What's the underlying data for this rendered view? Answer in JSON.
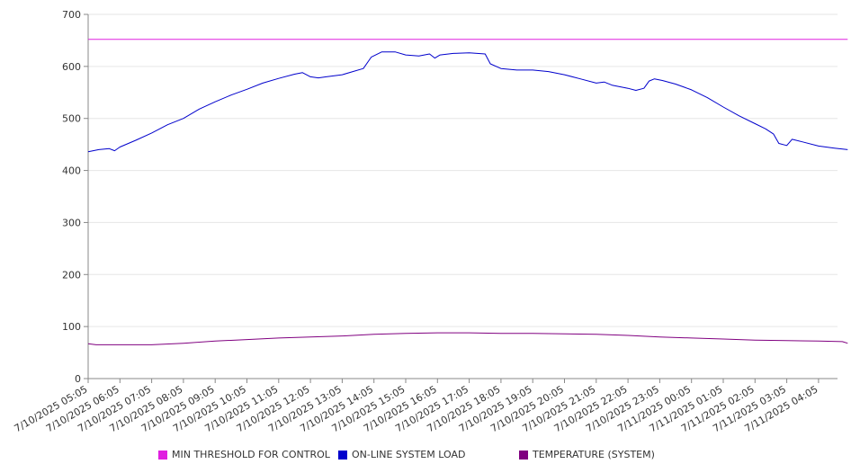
{
  "chart_data": {
    "type": "line",
    "title": "",
    "xlabel": "",
    "ylabel": "",
    "ylim": [
      0,
      700
    ],
    "y_ticks": [
      0,
      100,
      200,
      300,
      400,
      500,
      600,
      700
    ],
    "x_ticks": [
      "7/10/2025 05:05",
      "7/10/2025 06:05",
      "7/10/2025 07:05",
      "7/10/2025 08:05",
      "7/10/2025 09:05",
      "7/10/2025 10:05",
      "7/10/2025 11:05",
      "7/10/2025 12:05",
      "7/10/2025 13:05",
      "7/10/2025 14:05",
      "7/10/2025 15:05",
      "7/10/2025 16:05",
      "7/10/2025 17:05",
      "7/10/2025 18:05",
      "7/10/2025 19:05",
      "7/10/2025 20:05",
      "7/10/2025 21:05",
      "7/10/2025 22:05",
      "7/10/2025 23:05",
      "7/11/2025 00:05",
      "7/11/2025 01:05",
      "7/11/2025 02:05",
      "7/11/2025 03:05",
      "7/11/2025 04:05"
    ],
    "grid": "horizontal",
    "legend_position": "bottom",
    "series": [
      {
        "name": "MIN THRESHOLD FOR CONTROL",
        "color": "#e020e0",
        "points": [
          [
            "7/10/2025 05:05",
            652
          ],
          [
            "7/11/2025 05:00",
            652
          ]
        ]
      },
      {
        "name": "ON-LINE SYSTEM LOAD",
        "color": "#0000cc",
        "points": [
          [
            "7/10/2025 05:05",
            436
          ],
          [
            "7/10/2025 05:25",
            440
          ],
          [
            "7/10/2025 05:45",
            442
          ],
          [
            "7/10/2025 05:55",
            438
          ],
          [
            "7/10/2025 06:05",
            445
          ],
          [
            "7/10/2025 06:35",
            458
          ],
          [
            "7/10/2025 07:05",
            472
          ],
          [
            "7/10/2025 07:35",
            488
          ],
          [
            "7/10/2025 08:05",
            500
          ],
          [
            "7/10/2025 08:35",
            518
          ],
          [
            "7/10/2025 09:05",
            532
          ],
          [
            "7/10/2025 09:35",
            545
          ],
          [
            "7/10/2025 10:05",
            556
          ],
          [
            "7/10/2025 10:35",
            568
          ],
          [
            "7/10/2025 11:05",
            577
          ],
          [
            "7/10/2025 11:35",
            585
          ],
          [
            "7/10/2025 11:50",
            588
          ],
          [
            "7/10/2025 12:05",
            580
          ],
          [
            "7/10/2025 12:20",
            578
          ],
          [
            "7/10/2025 12:35",
            580
          ],
          [
            "7/10/2025 13:05",
            584
          ],
          [
            "7/10/2025 13:25",
            590
          ],
          [
            "7/10/2025 13:45",
            596
          ],
          [
            "7/10/2025 14:00",
            618
          ],
          [
            "7/10/2025 14:20",
            628
          ],
          [
            "7/10/2025 14:45",
            628
          ],
          [
            "7/10/2025 15:05",
            622
          ],
          [
            "7/10/2025 15:30",
            620
          ],
          [
            "7/10/2025 15:50",
            624
          ],
          [
            "7/10/2025 16:00",
            616
          ],
          [
            "7/10/2025 16:10",
            622
          ],
          [
            "7/10/2025 16:35",
            625
          ],
          [
            "7/10/2025 17:05",
            626
          ],
          [
            "7/10/2025 17:35",
            624
          ],
          [
            "7/10/2025 17:45",
            605
          ],
          [
            "7/10/2025 18:05",
            596
          ],
          [
            "7/10/2025 18:35",
            593
          ],
          [
            "7/10/2025 19:05",
            593
          ],
          [
            "7/10/2025 19:35",
            590
          ],
          [
            "7/10/2025 20:05",
            584
          ],
          [
            "7/10/2025 20:35",
            576
          ],
          [
            "7/10/2025 21:05",
            568
          ],
          [
            "7/10/2025 21:20",
            570
          ],
          [
            "7/10/2025 21:35",
            564
          ],
          [
            "7/10/2025 22:05",
            558
          ],
          [
            "7/10/2025 22:20",
            554
          ],
          [
            "7/10/2025 22:35",
            558
          ],
          [
            "7/10/2025 22:45",
            572
          ],
          [
            "7/10/2025 22:55",
            576
          ],
          [
            "7/10/2025 23:10",
            573
          ],
          [
            "7/10/2025 23:35",
            566
          ],
          [
            "7/11/2025 00:05",
            555
          ],
          [
            "7/11/2025 00:35",
            540
          ],
          [
            "7/11/2025 01:05",
            522
          ],
          [
            "7/11/2025 01:35",
            505
          ],
          [
            "7/11/2025 02:05",
            490
          ],
          [
            "7/11/2025 02:25",
            480
          ],
          [
            "7/11/2025 02:40",
            470
          ],
          [
            "7/11/2025 02:50",
            452
          ],
          [
            "7/11/2025 03:05",
            448
          ],
          [
            "7/11/2025 03:15",
            460
          ],
          [
            "7/11/2025 03:35",
            455
          ],
          [
            "7/11/2025 04:05",
            447
          ],
          [
            "7/11/2025 04:35",
            443
          ],
          [
            "7/11/2025 05:00",
            440
          ]
        ]
      },
      {
        "name": "TEMPERATURE (SYSTEM)",
        "color": "#800080",
        "points": [
          [
            "7/10/2025 05:05",
            67
          ],
          [
            "7/10/2025 05:20",
            65
          ],
          [
            "7/10/2025 07:05",
            65
          ],
          [
            "7/10/2025 08:05",
            68
          ],
          [
            "7/10/2025 09:05",
            72
          ],
          [
            "7/10/2025 10:05",
            75
          ],
          [
            "7/10/2025 11:05",
            78
          ],
          [
            "7/10/2025 12:05",
            80
          ],
          [
            "7/10/2025 13:05",
            82
          ],
          [
            "7/10/2025 14:05",
            85
          ],
          [
            "7/10/2025 15:05",
            87
          ],
          [
            "7/10/2025 16:05",
            88
          ],
          [
            "7/10/2025 17:05",
            88
          ],
          [
            "7/10/2025 18:05",
            87
          ],
          [
            "7/10/2025 19:05",
            87
          ],
          [
            "7/10/2025 20:05",
            86
          ],
          [
            "7/10/2025 21:05",
            85
          ],
          [
            "7/10/2025 22:05",
            83
          ],
          [
            "7/10/2025 23:05",
            80
          ],
          [
            "7/11/2025 00:05",
            78
          ],
          [
            "7/11/2025 01:05",
            76
          ],
          [
            "7/11/2025 02:05",
            74
          ],
          [
            "7/11/2025 03:05",
            73
          ],
          [
            "7/11/2025 04:05",
            72
          ],
          [
            "7/11/2025 04:50",
            71
          ],
          [
            "7/11/2025 05:00",
            68
          ]
        ]
      }
    ]
  }
}
